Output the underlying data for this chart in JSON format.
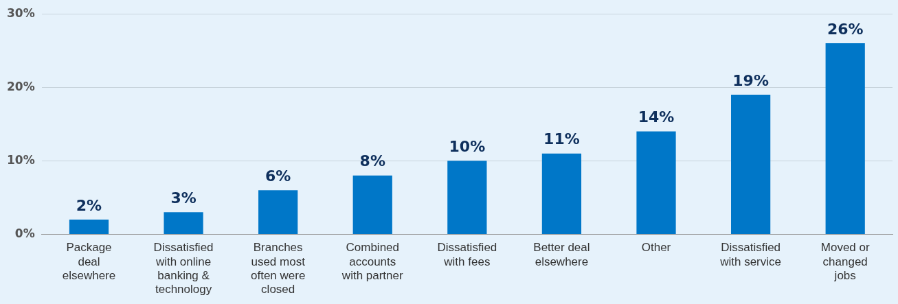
{
  "chart_data": {
    "type": "bar",
    "categories": [
      "Package deal elsewhere",
      "Dissatisfied with online banking & technology",
      "Branches used most often were closed",
      "Combined accounts with partner",
      "Dissatisfied with fees",
      "Better deal elsewhere",
      "Other",
      "Dissatisfied with service",
      "Moved or changed jobs"
    ],
    "values": [
      2,
      3,
      6,
      8,
      10,
      11,
      14,
      19,
      26
    ],
    "color": "#0077c8",
    "ylim": [
      0,
      30
    ],
    "yticks": [
      {
        "value": 0,
        "label": "0%"
      },
      {
        "value": 10,
        "label": "10%"
      },
      {
        "value": 20,
        "label": "20%"
      },
      {
        "value": 30,
        "label": "30%"
      }
    ],
    "grid": "y",
    "data_labels": true,
    "value_labels": [
      "2%",
      "3%",
      "6%",
      "8%",
      "10%",
      "11%",
      "14%",
      "19%",
      "26%"
    ],
    "legend": false
  }
}
